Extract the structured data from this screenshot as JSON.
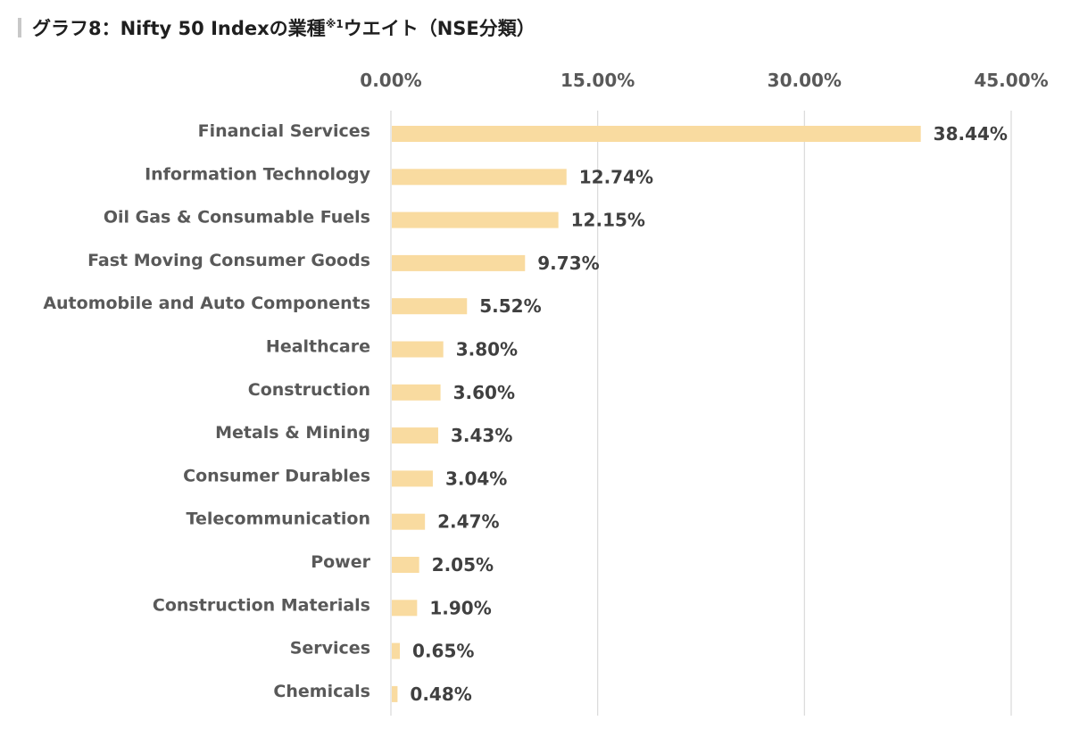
{
  "header": {
    "title_main": "グラフ8：Nifty 50 Indexの業種",
    "title_sup": "※1",
    "title_tail": "ウエイト（NSE分類）"
  },
  "chart_data": {
    "type": "bar",
    "orientation": "horizontal",
    "categories": [
      "Financial Services",
      "Information Technology",
      "Oil Gas & Consumable Fuels",
      "Fast Moving Consumer Goods",
      "Automobile and Auto Components",
      "Healthcare",
      "Construction",
      "Metals & Mining",
      "Consumer Durables",
      "Telecommunication",
      "Power",
      "Construction Materials",
      "Services",
      "Chemicals"
    ],
    "values": [
      38.44,
      12.74,
      12.15,
      9.73,
      5.52,
      3.8,
      3.6,
      3.43,
      3.04,
      2.47,
      2.05,
      1.9,
      0.65,
      0.48
    ],
    "value_labels": [
      "38.44%",
      "12.74%",
      "12.15%",
      "9.73%",
      "5.52%",
      "3.80%",
      "3.60%",
      "3.43%",
      "3.04%",
      "2.47%",
      "2.05%",
      "1.90%",
      "0.65%",
      "0.48%"
    ],
    "xlim": [
      0,
      45
    ],
    "x_ticks": [
      0,
      15,
      30,
      45
    ],
    "x_tick_labels": [
      "0.00%",
      "15.00%",
      "30.00%",
      "45.00%"
    ],
    "x_axis_position": "top",
    "grid": true,
    "bar_color": "#f9dba0",
    "grid_color": "#d9d9d9"
  }
}
